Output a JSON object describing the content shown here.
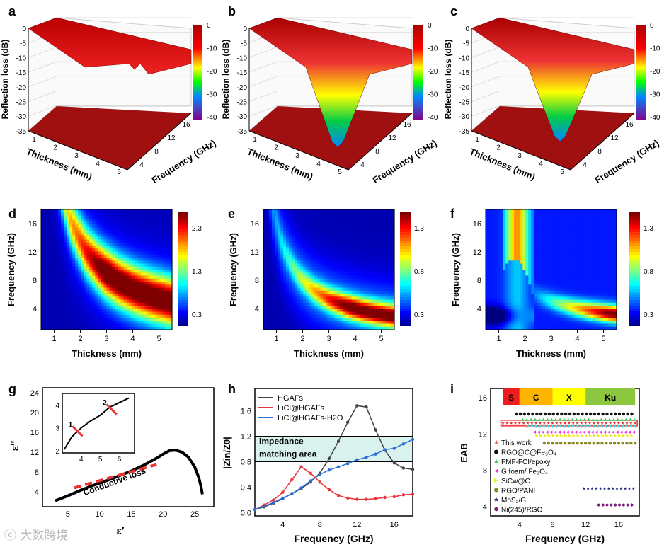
{
  "watermark": "大数跨境",
  "chart_data": [
    {
      "panel": "a",
      "type": "surface3d",
      "zlabel": "Reflection loss (dB)",
      "xlabel": "Thickness (mm)",
      "ylabel": "Frequency (GHz)",
      "xticks": [
        "1",
        "2",
        "3",
        "4",
        "5"
      ],
      "yticks": [
        "4",
        "8",
        "12",
        "16"
      ],
      "zticks": [
        "0",
        "-5",
        "-10",
        "-15",
        "-20",
        "-25",
        "-30",
        "-35"
      ],
      "colorbar": [
        "0",
        "-10",
        "-20",
        "-30",
        "-40"
      ],
      "min_rl": -13
    },
    {
      "panel": "b",
      "type": "surface3d",
      "zlabel": "Reflection loss (dB)",
      "xlabel": "Thickness (mm)",
      "ylabel": "Frequency (GHz)",
      "xticks": [
        "1",
        "2",
        "3",
        "4",
        "5"
      ],
      "yticks": [
        "4",
        "8",
        "12",
        "16"
      ],
      "zticks": [
        "0",
        "-5",
        "-10",
        "-15",
        "-20",
        "-25",
        "-30",
        "-35"
      ],
      "colorbar": [
        "0",
        "-10",
        "-20",
        "-30",
        "-40"
      ],
      "min_rl": -35
    },
    {
      "panel": "c",
      "type": "surface3d",
      "zlabel": "Reflection loss (dB)",
      "xlabel": "Thickness (mm)",
      "ylabel": "Frequency (GHz)",
      "xticks": [
        "1",
        "2",
        "3",
        "4",
        "5"
      ],
      "yticks": [
        "4",
        "8",
        "12",
        "16"
      ],
      "zticks": [
        "0",
        "-5",
        "-10",
        "-15",
        "-20",
        "-25",
        "-30",
        "-35"
      ],
      "colorbar": [
        "0",
        "-10",
        "-20",
        "-30",
        "-40"
      ],
      "min_rl": -33
    },
    {
      "panel": "d",
      "type": "heatmap",
      "xlabel": "Thickness (mm)",
      "ylabel": "Frequency (GHz)",
      "xticks": [
        "1",
        "2",
        "3",
        "4",
        "5"
      ],
      "yticks": [
        "4",
        "8",
        "12",
        "16"
      ],
      "colorbar": [
        "2.3",
        "1.3",
        "0.3"
      ],
      "vmax": 2.8,
      "band_k": 27
    },
    {
      "panel": "e",
      "type": "heatmap",
      "xlabel": "Thickness (mm)",
      "ylabel": "Frequency (GHz)",
      "xticks": [
        "1",
        "2",
        "3",
        "4",
        "5"
      ],
      "yticks": [
        "4",
        "8",
        "12",
        "16"
      ],
      "colorbar": [
        "1.3",
        "0.8",
        "0.3"
      ],
      "vmax": 1.45,
      "band_k": 16
    },
    {
      "panel": "f",
      "type": "heatmap",
      "xlabel": "Thickness (mm)",
      "ylabel": "Frequency (GHz)",
      "xticks": [
        "1",
        "2",
        "3",
        "4",
        "5"
      ],
      "yticks": [
        "4",
        "8",
        "12",
        "16"
      ],
      "colorbar": [
        "1.3",
        "0.8",
        "0.3"
      ],
      "vmax": 1.45,
      "band_k": 14
    },
    {
      "panel": "g",
      "type": "line",
      "xlabel": "ε′",
      "ylabel": "ε″",
      "xticks": [
        "5",
        "10",
        "15",
        "20",
        "25"
      ],
      "yticks": [
        "4",
        "8",
        "12",
        "16",
        "20",
        "24"
      ],
      "xlim": [
        1,
        28
      ],
      "ylim": [
        1,
        25
      ],
      "x": [
        3,
        5,
        7,
        9,
        11,
        13,
        15,
        17,
        19,
        20,
        21,
        22,
        23,
        24,
        25,
        25.6,
        26,
        26.2
      ],
      "y": [
        2.2,
        3.2,
        4.3,
        5.3,
        6.2,
        7.2,
        8.2,
        9.4,
        10.8,
        11.6,
        12.3,
        12.4,
        12,
        11,
        9,
        7,
        5,
        3.5
      ],
      "annotation": "Conductive loss",
      "inset": {
        "xticks": [
          "4",
          "5",
          "6"
        ],
        "yticks": [
          "2",
          "3",
          "4"
        ],
        "xlim": [
          3,
          6.8
        ],
        "ylim": [
          1.9,
          4.5
        ],
        "x": [
          3.1,
          3.5,
          4,
          4.5,
          5,
          5.5,
          6,
          6.5
        ],
        "y": [
          2.05,
          2.6,
          3.0,
          3.3,
          3.55,
          3.9,
          4.1,
          4.3
        ],
        "markers": [
          "1",
          "2"
        ]
      }
    },
    {
      "panel": "h",
      "type": "line",
      "xlabel": "Frequency (GHz)",
      "ylabel": "|Zin/Z0|",
      "xticks": [
        "4",
        "8",
        "12",
        "16"
      ],
      "yticks": [
        "0.0",
        "0.4",
        "0.8",
        "1.2",
        "1.6"
      ],
      "xlim": [
        1,
        18
      ],
      "ylim": [
        -0.05,
        1.95
      ],
      "band": {
        "label1": "Impedance",
        "label2": "matching  area",
        "from": 0.8,
        "to": 1.2
      },
      "x": [
        1,
        2,
        3,
        4,
        5,
        6,
        7,
        8,
        9,
        10,
        11,
        12,
        13,
        14,
        15,
        16,
        17,
        18
      ],
      "series": [
        {
          "name": "HGAFs",
          "color": "#444444",
          "values": [
            0.05,
            0.09,
            0.15,
            0.22,
            0.3,
            0.38,
            0.48,
            0.62,
            0.85,
            1.12,
            1.42,
            1.68,
            1.66,
            1.3,
            0.98,
            0.78,
            0.7,
            0.68
          ]
        },
        {
          "name": "LiCl@HGAFs",
          "color": "#e8333a",
          "values": [
            0.05,
            0.12,
            0.2,
            0.32,
            0.52,
            0.72,
            0.62,
            0.48,
            0.36,
            0.27,
            0.23,
            0.21,
            0.21,
            0.22,
            0.24,
            0.25,
            0.28,
            0.29
          ]
        },
        {
          "name": "LiCl@HGAFs-H2O",
          "color": "#2a6fd6",
          "values": [
            0.05,
            0.1,
            0.16,
            0.23,
            0.3,
            0.39,
            0.5,
            0.6,
            0.67,
            0.72,
            0.77,
            0.83,
            0.87,
            0.92,
            0.99,
            1.01,
            1.08,
            1.15
          ]
        }
      ]
    },
    {
      "panel": "i",
      "type": "scatter",
      "xlabel": "Frequency (GHz)",
      "ylabel": "EAB",
      "xticks": [
        "4",
        "8",
        "12",
        "16"
      ],
      "yticks": [
        "4",
        "8",
        "12",
        "16"
      ],
      "xlim": [
        0.5,
        18.5
      ],
      "ylim": [
        3,
        17
      ],
      "bands": [
        {
          "label": "S",
          "from": 2,
          "to": 4,
          "color": "#ee1c1c"
        },
        {
          "label": "C",
          "from": 4,
          "to": 8,
          "color": "#ffb400"
        },
        {
          "label": "X",
          "from": 8,
          "to": 12,
          "color": "#ffff00"
        },
        {
          "label": "Ku",
          "from": 12,
          "to": 18,
          "color": "#8dc63f"
        }
      ],
      "series": [
        {
          "name": "This work",
          "color": "#e8333a",
          "marker": "★",
          "from": 2,
          "to": 18,
          "eab": 13.2
        },
        {
          "name": "RGO@C@Fe₃O₄",
          "color": "#111111",
          "marker": "●",
          "from": 3.6,
          "to": 18,
          "eab": 14.2
        },
        {
          "name": "FMF-FCI/epoxy",
          "color": "#33cc55",
          "marker": "▲",
          "from": 4.4,
          "to": 18,
          "eab": 13.6
        },
        {
          "name": "",
          "color": "#33dddd",
          "marker": "▼",
          "from": 5,
          "to": 18,
          "eab": 12.8
        },
        {
          "name": "G foam/ Fe₃O₄",
          "color": "#ee33ee",
          "marker": "◀",
          "from": 5.8,
          "to": 18,
          "eab": 12.2
        },
        {
          "name": "SiCw@C",
          "color": "#eeee22",
          "marker": "▶",
          "from": 6.1,
          "to": 18,
          "eab": 11.8
        },
        {
          "name": "RGO/PANI",
          "color": "#888822",
          "marker": "●",
          "from": 7,
          "to": 18,
          "eab": 11
        },
        {
          "name": "MoS₂/G",
          "color": "#1a237e",
          "marker": "★",
          "from": 11.8,
          "to": 18,
          "eab": 6
        },
        {
          "name": "Ni(245)/RGO",
          "color": "#7b1a7b",
          "marker": "⬢",
          "from": 13.6,
          "to": 18,
          "eab": 4.2
        }
      ]
    }
  ]
}
